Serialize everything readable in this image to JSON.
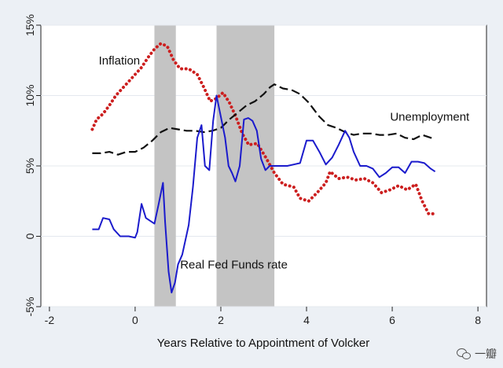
{
  "chart_data": {
    "type": "line",
    "title": "",
    "xlabel": "Years Relative to Appointment of Volcker",
    "ylabel": "",
    "xlim": [
      -2.2,
      8.2
    ],
    "ylim": [
      -5,
      15
    ],
    "xticks": [
      -2,
      0,
      2,
      4,
      6,
      8
    ],
    "xtick_labels": [
      "-2",
      "0",
      "2",
      "4",
      "6",
      "8"
    ],
    "yticks": [
      -5,
      0,
      5,
      10,
      15
    ],
    "ytick_labels": [
      "-5%",
      "0",
      "5%",
      "10%",
      "15%"
    ],
    "grid": "horizontal",
    "legend": "none",
    "shaded_periods": [
      {
        "x0": 0.45,
        "x1": 0.95
      },
      {
        "x0": 1.9,
        "x1": 3.25
      }
    ],
    "series": [
      {
        "name": "Inflation",
        "style": "dotted",
        "color": "#cc1f1f",
        "points": [
          [
            -1,
            7.6
          ],
          [
            -0.9,
            8.3
          ],
          [
            -0.75,
            8.7
          ],
          [
            -0.6,
            9.3
          ],
          [
            -0.45,
            10.0
          ],
          [
            -0.3,
            10.5
          ],
          [
            -0.15,
            11.0
          ],
          [
            0,
            11.5
          ],
          [
            0.15,
            12.0
          ],
          [
            0.3,
            12.7
          ],
          [
            0.45,
            13.3
          ],
          [
            0.6,
            13.7
          ],
          [
            0.75,
            13.5
          ],
          [
            0.9,
            12.5
          ],
          [
            1.05,
            11.9
          ],
          [
            1.25,
            11.9
          ],
          [
            1.45,
            11.5
          ],
          [
            1.6,
            10.6
          ],
          [
            1.75,
            9.6
          ],
          [
            1.9,
            9.8
          ],
          [
            2.05,
            10.2
          ],
          [
            2.2,
            9.5
          ],
          [
            2.35,
            8.5
          ],
          [
            2.5,
            7.3
          ],
          [
            2.65,
            6.5
          ],
          [
            2.85,
            6.6
          ],
          [
            3.05,
            5.6
          ],
          [
            3.25,
            4.5
          ],
          [
            3.45,
            3.7
          ],
          [
            3.7,
            3.5
          ],
          [
            3.85,
            2.7
          ],
          [
            4.05,
            2.5
          ],
          [
            4.25,
            3.1
          ],
          [
            4.45,
            3.8
          ],
          [
            4.55,
            4.6
          ],
          [
            4.75,
            4.1
          ],
          [
            4.95,
            4.2
          ],
          [
            5.15,
            4.0
          ],
          [
            5.35,
            4.1
          ],
          [
            5.55,
            3.8
          ],
          [
            5.75,
            3.1
          ],
          [
            5.95,
            3.3
          ],
          [
            6.15,
            3.6
          ],
          [
            6.35,
            3.3
          ],
          [
            6.55,
            3.7
          ],
          [
            6.7,
            2.5
          ],
          [
            6.85,
            1.6
          ],
          [
            7.0,
            1.6
          ]
        ]
      },
      {
        "name": "Unemployment",
        "style": "dashed",
        "color": "#111111",
        "points": [
          [
            -1,
            5.9
          ],
          [
            -0.8,
            5.9
          ],
          [
            -0.6,
            6.0
          ],
          [
            -0.4,
            5.8
          ],
          [
            -0.2,
            6.0
          ],
          [
            0,
            6.0
          ],
          [
            0.2,
            6.3
          ],
          [
            0.4,
            6.8
          ],
          [
            0.6,
            7.4
          ],
          [
            0.8,
            7.7
          ],
          [
            1,
            7.6
          ],
          [
            1.2,
            7.5
          ],
          [
            1.4,
            7.5
          ],
          [
            1.6,
            7.4
          ],
          [
            1.8,
            7.5
          ],
          [
            2,
            7.7
          ],
          [
            2.2,
            8.3
          ],
          [
            2.4,
            8.8
          ],
          [
            2.6,
            9.3
          ],
          [
            2.8,
            9.6
          ],
          [
            3,
            10.1
          ],
          [
            3.15,
            10.6
          ],
          [
            3.25,
            10.8
          ],
          [
            3.45,
            10.5
          ],
          [
            3.65,
            10.4
          ],
          [
            3.85,
            10.1
          ],
          [
            4.05,
            9.5
          ],
          [
            4.3,
            8.5
          ],
          [
            4.5,
            7.9
          ],
          [
            4.7,
            7.7
          ],
          [
            4.9,
            7.4
          ],
          [
            5.1,
            7.2
          ],
          [
            5.3,
            7.3
          ],
          [
            5.5,
            7.3
          ],
          [
            5.7,
            7.2
          ],
          [
            5.9,
            7.2
          ],
          [
            6.1,
            7.3
          ],
          [
            6.3,
            7.0
          ],
          [
            6.5,
            6.9
          ],
          [
            6.7,
            7.2
          ],
          [
            6.9,
            7.0
          ],
          [
            7.0,
            6.9
          ]
        ]
      },
      {
        "name": "Real Fed Funds rate",
        "style": "solid",
        "color": "#1b1bcc",
        "points": [
          [
            -1,
            0.5
          ],
          [
            -0.85,
            0.5
          ],
          [
            -0.75,
            1.3
          ],
          [
            -0.6,
            1.2
          ],
          [
            -0.5,
            0.5
          ],
          [
            -0.35,
            0.0
          ],
          [
            -0.15,
            0.0
          ],
          [
            0,
            -0.1
          ],
          [
            0.05,
            0.3
          ],
          [
            0.15,
            2.3
          ],
          [
            0.25,
            1.3
          ],
          [
            0.35,
            1.1
          ],
          [
            0.45,
            0.9
          ],
          [
            0.55,
            2.3
          ],
          [
            0.65,
            3.8
          ],
          [
            0.7,
            1.0
          ],
          [
            0.78,
            -2.5
          ],
          [
            0.85,
            -4.0
          ],
          [
            0.93,
            -3.3
          ],
          [
            1.0,
            -2.0
          ],
          [
            1.1,
            -1.3
          ],
          [
            1.25,
            0.8
          ],
          [
            1.35,
            3.5
          ],
          [
            1.45,
            7.0
          ],
          [
            1.55,
            7.9
          ],
          [
            1.63,
            5.0
          ],
          [
            1.73,
            4.7
          ],
          [
            1.82,
            8.2
          ],
          [
            1.9,
            10.0
          ],
          [
            2.0,
            8.5
          ],
          [
            2.1,
            7.0
          ],
          [
            2.18,
            5.0
          ],
          [
            2.26,
            4.5
          ],
          [
            2.34,
            3.9
          ],
          [
            2.44,
            5.0
          ],
          [
            2.54,
            8.3
          ],
          [
            2.64,
            8.4
          ],
          [
            2.74,
            8.2
          ],
          [
            2.84,
            7.5
          ],
          [
            2.94,
            5.5
          ],
          [
            3.04,
            4.7
          ],
          [
            3.14,
            5.0
          ],
          [
            3.24,
            5.0
          ],
          [
            3.4,
            5.0
          ],
          [
            3.55,
            5.0
          ],
          [
            3.7,
            5.1
          ],
          [
            3.85,
            5.2
          ],
          [
            4.0,
            6.8
          ],
          [
            4.15,
            6.8
          ],
          [
            4.3,
            6.0
          ],
          [
            4.45,
            5.1
          ],
          [
            4.6,
            5.6
          ],
          [
            4.75,
            6.5
          ],
          [
            4.9,
            7.5
          ],
          [
            5.0,
            7.0
          ],
          [
            5.1,
            6.0
          ],
          [
            5.25,
            5.0
          ],
          [
            5.4,
            5.0
          ],
          [
            5.55,
            4.8
          ],
          [
            5.7,
            4.2
          ],
          [
            5.85,
            4.5
          ],
          [
            6.0,
            4.9
          ],
          [
            6.15,
            4.9
          ],
          [
            6.3,
            4.5
          ],
          [
            6.45,
            5.3
          ],
          [
            6.6,
            5.3
          ],
          [
            6.75,
            5.2
          ],
          [
            6.9,
            4.8
          ],
          [
            7.0,
            4.6
          ]
        ]
      }
    ],
    "annotations": [
      {
        "text": "Inflation",
        "x": -0.85,
        "y": 12.2
      },
      {
        "text": "Unemployment",
        "x": 5.95,
        "y": 8.2
      },
      {
        "text": "Real Fed Funds rate",
        "x": 1.05,
        "y": -2.3
      }
    ]
  },
  "watermark": {
    "icon": "wechat-icon",
    "text": "一瓣"
  }
}
